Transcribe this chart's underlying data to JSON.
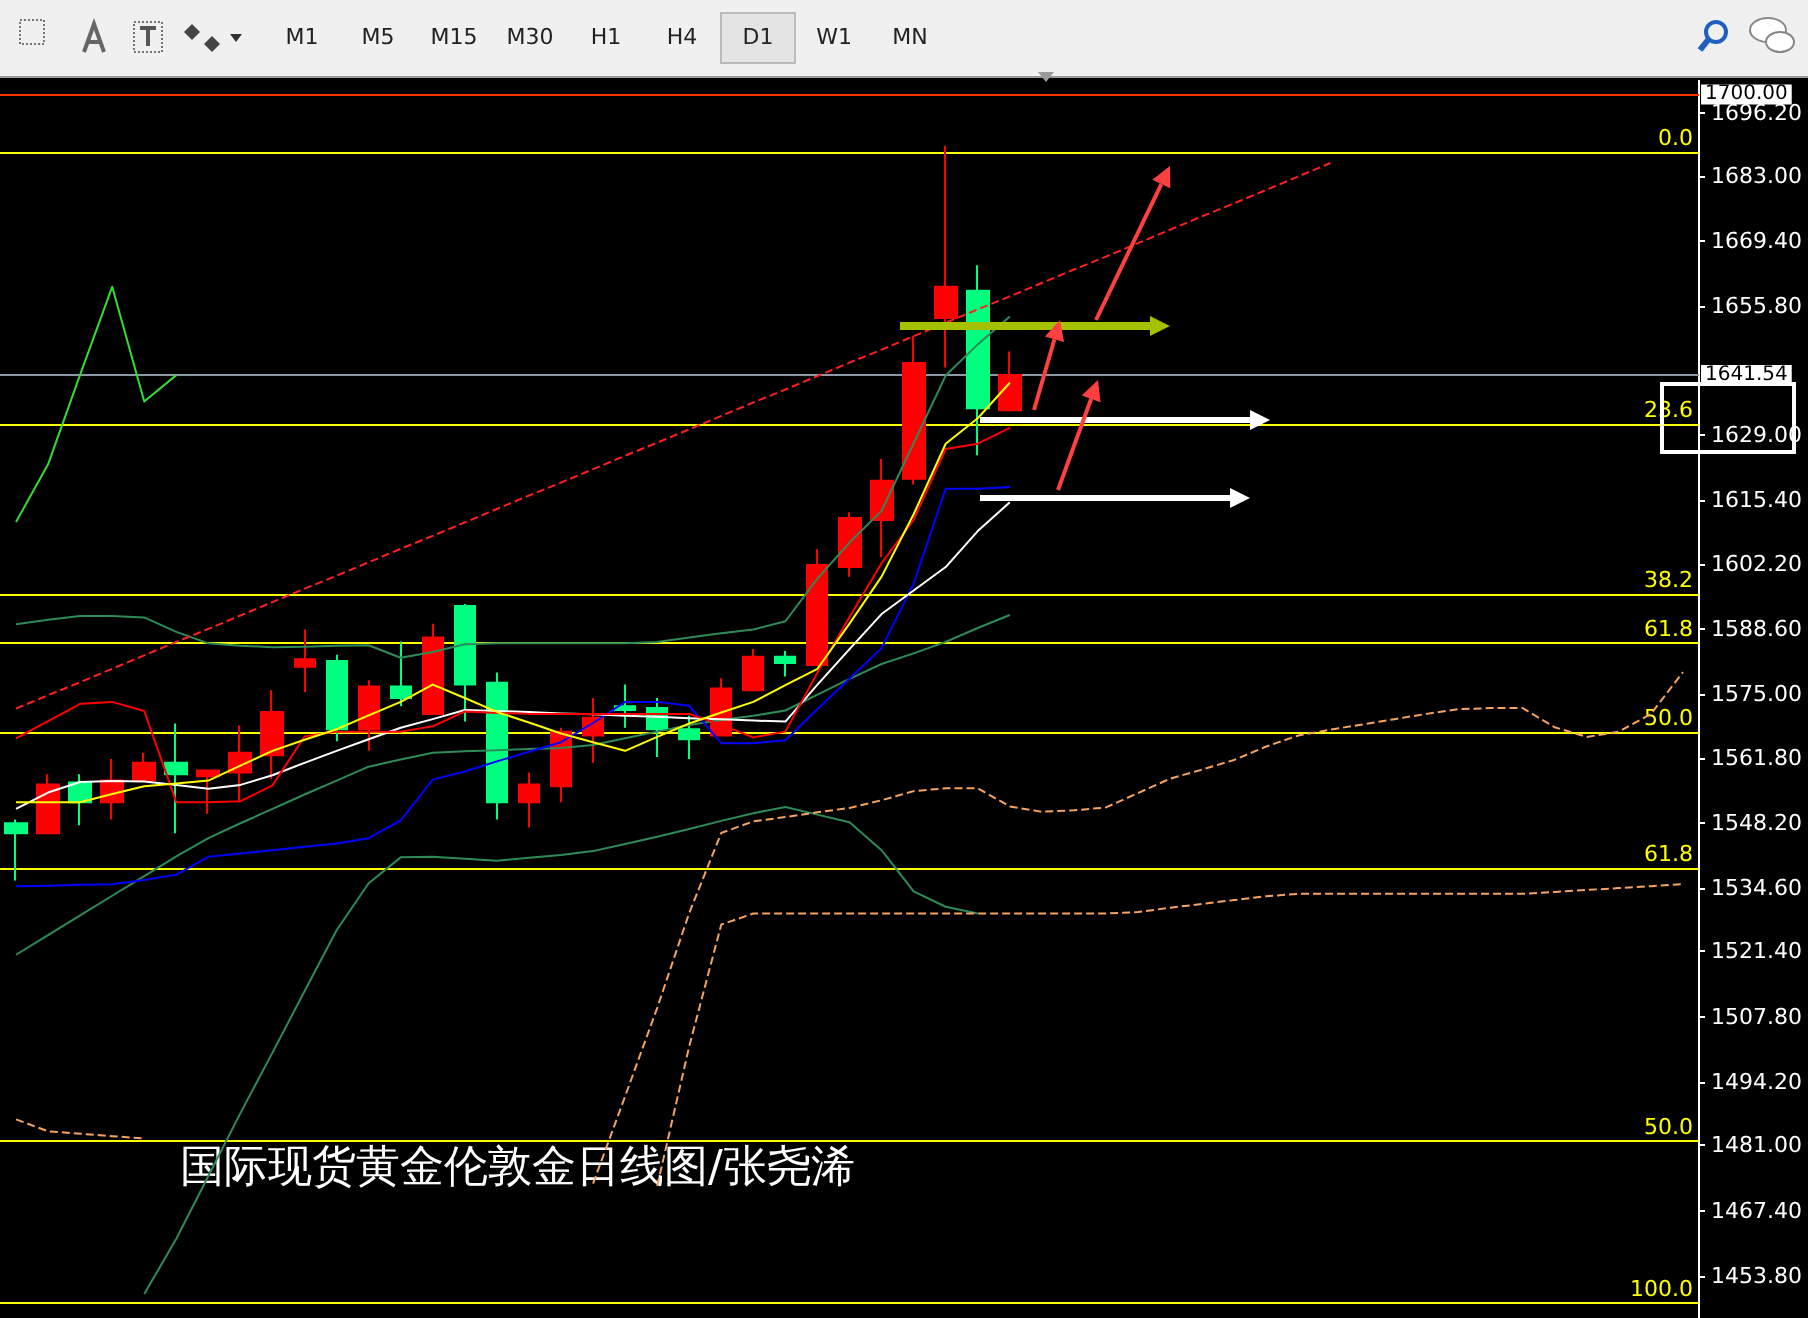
{
  "chart_data": {
    "type": "candlestick",
    "title": "国际现货黄金伦敦金日线图/张尧浠",
    "annotations": [
      "M1",
      "M5",
      "M15",
      "M30",
      "H1",
      "H4",
      "D1",
      "W1",
      "MN",
      {
        "text": "0.0",
        "y": 1688.0
      },
      {
        "text": "23.6",
        "y": 1631.3
      },
      {
        "text": "38.2",
        "y": 1595.8
      },
      {
        "text": "61.8",
        "y": 1585.6
      },
      {
        "text": "50.0",
        "y": 1567.2
      },
      {
        "text": "61.8",
        "y": 1538.7
      },
      {
        "text": "50.0",
        "y": 1481.9
      },
      {
        "text": "100.0",
        "y": 1448.1
      }
    ],
    "categories": [
      null,
      null,
      null,
      null,
      null,
      null,
      null,
      null,
      null,
      null,
      null,
      null,
      null,
      null,
      null,
      null,
      null,
      null,
      null,
      null,
      null,
      null,
      null,
      null,
      null,
      null,
      null,
      null,
      null,
      null,
      null,
      null,
      null,
      null,
      null,
      null,
      null,
      null,
      null,
      null,
      null,
      null,
      null,
      null,
      null,
      null,
      null,
      null,
      null,
      null,
      null,
      null,
      null
    ],
    "ohlc": [
      [
        1548.1,
        1548.9,
        1536.2,
        1546.0
      ],
      [
        1546.0,
        1558.3,
        1546.0,
        1556.2
      ],
      [
        1556.6,
        1558.3,
        1547.7,
        1552.5
      ],
      [
        1552.5,
        1561.5,
        1548.9,
        1557.0
      ],
      [
        1557.0,
        1562.8,
        1557.0,
        1560.7
      ],
      [
        1560.7,
        1568.9,
        1546.0,
        1558.3
      ],
      [
        1557.9,
        1559.1,
        1550.1,
        1559.1
      ],
      [
        1558.7,
        1568.5,
        1552.5,
        1562.8
      ],
      [
        1562.3,
        1575.8,
        1557.4,
        1571.3
      ],
      [
        1580.7,
        1588.5,
        1575.4,
        1582.3
      ],
      [
        1581.9,
        1583.2,
        1565.2,
        1567.7
      ],
      [
        1567.7,
        1577.9,
        1563.2,
        1576.6
      ],
      [
        1576.6,
        1586.0,
        1572.5,
        1574.2
      ],
      [
        1570.9,
        1589.7,
        1570.9,
        1586.8
      ],
      [
        1593.4,
        1593.8,
        1569.3,
        1577.0
      ],
      [
        1577.4,
        1579.5,
        1548.9,
        1552.5
      ],
      [
        1552.5,
        1558.7,
        1547.2,
        1556.2
      ],
      [
        1555.8,
        1568.0,
        1552.5,
        1567.2
      ],
      [
        1566.4,
        1574.2,
        1560.7,
        1570.1
      ],
      [
        1572.5,
        1577.0,
        1568.0,
        1571.7
      ],
      [
        1572.1,
        1574.2,
        1561.9,
        1567.7
      ],
      [
        1567.7,
        1570.5,
        1561.5,
        1565.6
      ],
      [
        1566.4,
        1578.3,
        1566.4,
        1576.2
      ],
      [
        1575.8,
        1584.4,
        1575.8,
        1582.8
      ],
      [
        1582.8,
        1584.0,
        1578.7,
        1581.5
      ],
      [
        1581.1,
        1605.2,
        1581.1,
        1601.9
      ],
      [
        1601.5,
        1612.9,
        1599.5,
        1611.7
      ],
      [
        1611.3,
        1624.0,
        1603.6,
        1619.5
      ],
      [
        1619.9,
        1649.7,
        1618.7,
        1644.0
      ],
      [
        1653.4,
        1689.3,
        1643.1,
        1659.9
      ],
      [
        1659.1,
        1664.4,
        1624.8,
        1634.6
      ],
      [
        1634.2,
        1646.4,
        1634.2,
        1641.54
      ],
      null,
      null,
      null,
      null,
      null,
      null,
      null,
      null,
      null,
      null,
      null,
      null,
      null,
      null,
      null,
      null,
      null,
      null,
      null,
      null,
      null
    ],
    "colors": [
      "#00ff7f",
      "#ff0000",
      "#00ff7f",
      "#ff0000",
      "#ff0000",
      "#00ff7f",
      "#ff0000",
      "#ff0000",
      "#ff0000",
      "#ff0000",
      "#00ff7f",
      "#ff0000",
      "#00ff7f",
      "#ff0000",
      "#00ff7f",
      "#00ff7f",
      "#ff0000",
      "#ff0000",
      "#ff0000",
      "#00ff7f",
      "#00ff7f",
      "#00ff7f",
      "#ff0000",
      "#ff0000",
      "#00ff7f",
      "#ff0000",
      "#ff0000",
      "#ff0000",
      "#ff0000",
      "#ff0000",
      "#00ff7f",
      "#ff0000",
      null,
      null,
      null,
      null,
      null,
      null,
      null,
      null,
      null,
      null,
      null,
      null,
      null,
      null,
      null,
      null,
      null,
      null,
      null,
      null,
      null
    ],
    "series": [
      {
        "type": "line",
        "color": "#2e8b57",
        "line_style": "solid",
        "values": [
          1589.6,
          1590.5,
          1591.3,
          1591.3,
          1591.0,
          1588.0,
          1585.6,
          1585.1,
          1584.8,
          1584.9,
          1585.1,
          1585.2,
          1582.6,
          1583.8,
          1585.4,
          1585.6,
          1585.6,
          1585.6,
          1585.6,
          1585.6,
          1585.9,
          1586.8,
          1587.7,
          1588.5,
          1590.2,
          1599.1,
          1606.6,
          1613.2,
          1627.3,
          1641.4,
          1647.9,
          1653.7,
          null,
          null,
          null,
          null,
          null,
          null,
          null,
          null,
          null,
          null,
          null,
          null,
          null,
          null,
          null,
          null,
          null,
          null,
          null,
          null,
          null
        ]
      },
      {
        "type": "line",
        "color": "#2e8b57",
        "line_style": "solid",
        "values": [
          1520.7,
          1524.8,
          1528.9,
          1533.0,
          1537.1,
          1541.2,
          1545.0,
          1548.1,
          1551.1,
          1554.1,
          1557.0,
          1559.9,
          1561.4,
          1562.8,
          1563.1,
          1563.3,
          1563.6,
          1563.8,
          1564.4,
          1565.8,
          1567.2,
          1568.6,
          1569.6,
          1570.5,
          1571.6,
          1574.9,
          1578.2,
          1581.3,
          1583.5,
          1585.9,
          1588.8,
          1591.5,
          null,
          null,
          null,
          null,
          null,
          null,
          null,
          null,
          null,
          null,
          null,
          null,
          null,
          null,
          null,
          null,
          null,
          null,
          null,
          null,
          null
        ]
      },
      {
        "type": "line",
        "color": "#2e8b57",
        "line_style": "solid",
        "values": [
          null,
          null,
          null,
          null,
          1450.0,
          1461.5,
          1474.6,
          1487.7,
          1500.3,
          1513.1,
          1525.8,
          1535.6,
          1541.0,
          1541.1,
          1540.7,
          1540.3,
          1540.9,
          1541.5,
          1542.3,
          1543.8,
          1545.3,
          1546.9,
          1548.6,
          1550.2,
          1551.5,
          1549.9,
          1548.3,
          1542.5,
          1533.9,
          1530.7,
          1529.3,
          null,
          null,
          null,
          null,
          null,
          null,
          null,
          null,
          null,
          null,
          null,
          null,
          null,
          null,
          null,
          null,
          null,
          null,
          null,
          null,
          null,
          null
        ]
      },
      {
        "type": "line",
        "color": "#33dd33",
        "line_style": "solid",
        "values": [
          1610.9,
          1622.9,
          1641.6,
          1659.9,
          1636.0,
          1641.5,
          null,
          null,
          null,
          null,
          null,
          null,
          null,
          null,
          null,
          null,
          null,
          null,
          null,
          null,
          null,
          null,
          null,
          null,
          null,
          null,
          null,
          null,
          null,
          null,
          null,
          null,
          null,
          null,
          null,
          null,
          null,
          null,
          null,
          null,
          null,
          null,
          null,
          null,
          null,
          null,
          null,
          null,
          null,
          null,
          null,
          null,
          null
        ]
      },
      {
        "type": "line",
        "color": "#0000ff",
        "line_style": "solid",
        "values": [
          1535.0,
          1535.1,
          1535.3,
          1535.4,
          1536.3,
          1537.4,
          1541.1,
          1541.8,
          1542.5,
          1543.2,
          1543.9,
          1545.0,
          1548.7,
          1557.2,
          1558.9,
          1561.0,
          1563.0,
          1565.0,
          1569.0,
          1573.4,
          1573.4,
          1572.6,
          1564.8,
          1564.8,
          1565.4,
          1571.9,
          1578.2,
          1584.6,
          1598.0,
          1617.8,
          1617.8,
          1618.2,
          null,
          null,
          null,
          null,
          null,
          null,
          null,
          null,
          null,
          null,
          null,
          null,
          null,
          null,
          null,
          null,
          null,
          null,
          null,
          null,
          null
        ]
      },
      {
        "type": "line",
        "color": "#ffffff",
        "line_style": "solid",
        "values": [
          1551.1,
          1554.5,
          1556.7,
          1556.9,
          1556.8,
          1556.1,
          1555.3,
          1556.1,
          1558.1,
          1560.7,
          1563.2,
          1565.6,
          1568.0,
          1569.8,
          1571.7,
          1571.5,
          1571.3,
          1571.0,
          1570.8,
          1570.5,
          1570.3,
          1570.0,
          1569.8,
          1569.5,
          1569.3,
          1577.0,
          1584.4,
          1591.7,
          1596.6,
          1601.5,
          1609.0,
          1615.0,
          null,
          null,
          null,
          null,
          null,
          null,
          null,
          null,
          null,
          null,
          null,
          null,
          null,
          null,
          null,
          null,
          null,
          null,
          null,
          null,
          null
        ]
      },
      {
        "type": "line",
        "color": "#ff0000",
        "line_style": "solid",
        "values": [
          1565.8,
          1569.4,
          1573.0,
          1573.4,
          1571.5,
          1552.5,
          1552.5,
          1552.7,
          1556.0,
          1566.2,
          1567.2,
          1567.2,
          1567.2,
          1568.3,
          1571.4,
          1571.1,
          1570.9,
          1570.9,
          1570.9,
          1570.9,
          1570.9,
          1570.9,
          1568.6,
          1566.0,
          1567.2,
          1579.5,
          1591.1,
          1602.3,
          1611.3,
          1626.1,
          1627.2,
          1630.5,
          null,
          null,
          null,
          null,
          null,
          null,
          null,
          null,
          null,
          null,
          null,
          null,
          null,
          null,
          null,
          null,
          null,
          null,
          null,
          null,
          null
        ]
      },
      {
        "type": "line",
        "color": "#ffff00",
        "line_style": "solid",
        "values": [
          1552.5,
          1552.5,
          1552.5,
          1554.2,
          1555.8,
          1556.4,
          1557.0,
          1560.1,
          1563.2,
          1565.5,
          1567.7,
          1570.6,
          1573.4,
          1577.0,
          1574.2,
          1571.3,
          1569.1,
          1566.8,
          1565.0,
          1563.2,
          1566.1,
          1568.9,
          1571.2,
          1573.4,
          1576.9,
          1580.3,
          1589.7,
          1599.5,
          1612.5,
          1627.2,
          1632.5,
          1639.9,
          null,
          null,
          null,
          null,
          null,
          null,
          null,
          null,
          null,
          null,
          null,
          null,
          null,
          null,
          null,
          null,
          null,
          null,
          null,
          null,
          null
        ]
      },
      {
        "type": "line",
        "color": "#f4a460",
        "line_style": "dashed",
        "values": [
          null,
          null,
          null,
          null,
          null,
          null,
          null,
          null,
          null,
          null,
          null,
          null,
          null,
          null,
          null,
          null,
          null,
          null,
          1473.0,
          1491.2,
          1509.6,
          1529.4,
          1546.1,
          1548.5,
          1549.4,
          1550.4,
          1551.3,
          1552.9,
          1554.8,
          1555.4,
          1555.4,
          1551.6,
          1550.5,
          1550.8,
          1551.4,
          1554.4,
          1557.4,
          1559.3,
          1561.3,
          1564.1,
          1566.4,
          1567.6,
          1568.7,
          1569.8,
          1570.9,
          1571.9,
          1572.1,
          1572.1,
          1568.1,
          1566.1,
          1567.2,
          1570.9,
          1579.6
        ]
      },
      {
        "type": "line",
        "color": "#f4a460",
        "line_style": "dashed",
        "values": [
          null,
          null,
          null,
          null,
          null,
          null,
          null,
          null,
          null,
          null,
          null,
          null,
          null,
          null,
          null,
          null,
          null,
          null,
          null,
          null,
          1472.5,
          1501.6,
          1527.0,
          1529.3,
          1529.3,
          1529.3,
          1529.3,
          1529.3,
          1529.3,
          1529.3,
          1529.3,
          1529.3,
          1529.3,
          1529.3,
          1529.3,
          1529.6,
          1530.5,
          1531.3,
          1532.1,
          1532.9,
          1533.4,
          1533.4,
          1533.4,
          1533.4,
          1533.4,
          1533.4,
          1533.4,
          1533.4,
          1533.8,
          1534.2,
          1534.6,
          1535.0,
          1535.4
        ]
      },
      {
        "type": "line",
        "color": "#f4a460",
        "line_style": "dashed",
        "values": [
          1486.4,
          1483.9,
          1483.4,
          1482.9,
          1482.4,
          null,
          null,
          null,
          null,
          null,
          null,
          null,
          null,
          null,
          null,
          null,
          null,
          null,
          null,
          null,
          null,
          null,
          null,
          null,
          null,
          null,
          null,
          null,
          null,
          null,
          null,
          null,
          null,
          null,
          null,
          null,
          null,
          null,
          null,
          null,
          null,
          null,
          null,
          null,
          null,
          null,
          null,
          null,
          null,
          null,
          null,
          null,
          null
        ]
      },
      {
        "type": "line",
        "color": "#ff2020",
        "line_style": "dashed",
        "values": [
          1572.0,
          1574.8,
          1577.5,
          1580.3,
          1583.1,
          1585.9,
          1588.6,
          1591.4,
          1594.2,
          1597.0,
          1599.7,
          1602.5,
          1605.3,
          1608.0,
          1610.8,
          1613.6,
          1616.4,
          1619.1,
          1621.9,
          1624.7,
          1627.4,
          1630.2,
          1633.0,
          1635.8,
          1638.5,
          1641.3,
          1644.1,
          1646.8,
          1649.6,
          1652.4,
          1655.2,
          1657.9,
          1660.7,
          1663.5,
          1666.2,
          1669.0,
          1671.8,
          1674.6,
          1677.3,
          1680.1,
          1682.9,
          1685.7,
          null,
          null,
          null,
          null,
          null,
          null,
          null,
          null,
          null,
          null,
          null
        ]
      }
    ],
    "ref_lines": [
      {
        "axis": "y",
        "value": 1688.0,
        "color": "#ffff00"
      },
      {
        "axis": "y",
        "value": 1631.3,
        "color": "#ffff00"
      },
      {
        "axis": "y",
        "value": 1595.8,
        "color": "#ffff00"
      },
      {
        "axis": "y",
        "value": 1585.6,
        "color": "#ffff00"
      },
      {
        "axis": "y",
        "value": 1567.2,
        "color": "#ffff00"
      },
      {
        "axis": "y",
        "value": 1538.7,
        "color": "#ffff00"
      },
      {
        "axis": "y",
        "value": 1481.9,
        "color": "#ffff00"
      },
      {
        "axis": "y",
        "value": 1448.1,
        "color": "#ffff00"
      },
      {
        "axis": "y",
        "value": 1641.54,
        "label": "1641.54",
        "color": "#8c9aa8"
      },
      {
        "axis": "y",
        "value": 1700,
        "label": "1700.00",
        "color": "#ff3300"
      }
    ],
    "ylim": [
      1445,
      1703
    ],
    "yticks": [
      {
        "value": 1696.2,
        "label": "1696.20"
      },
      {
        "value": 1683.0,
        "label": "1683.00"
      },
      {
        "value": 1669.4,
        "label": "1669.40"
      },
      {
        "value": 1655.8,
        "label": "1655.80"
      },
      {
        "value": 1629.0,
        "label": "1629.00"
      },
      {
        "value": 1615.4,
        "label": "1615.40"
      },
      {
        "value": 1602.2,
        "label": "1602.20"
      },
      {
        "value": 1588.6,
        "label": "1588.60"
      },
      {
        "value": 1575.0,
        "label": "1575.00"
      },
      {
        "value": 1561.8,
        "label": "1561.80"
      },
      {
        "value": 1548.2,
        "label": "1548.20"
      },
      {
        "value": 1534.6,
        "label": "1534.60"
      },
      {
        "value": 1521.4,
        "label": "1521.40"
      },
      {
        "value": 1507.8,
        "label": "1507.80"
      },
      {
        "value": 1494.2,
        "label": "1494.20"
      },
      {
        "value": 1481.0,
        "label": "1481.00"
      },
      {
        "value": 1467.4,
        "label": "1467.40"
      },
      {
        "value": 1453.8,
        "label": "1453.80"
      }
    ],
    "tick_labels": "y",
    "grid": false,
    "marker": "none"
  }
}
